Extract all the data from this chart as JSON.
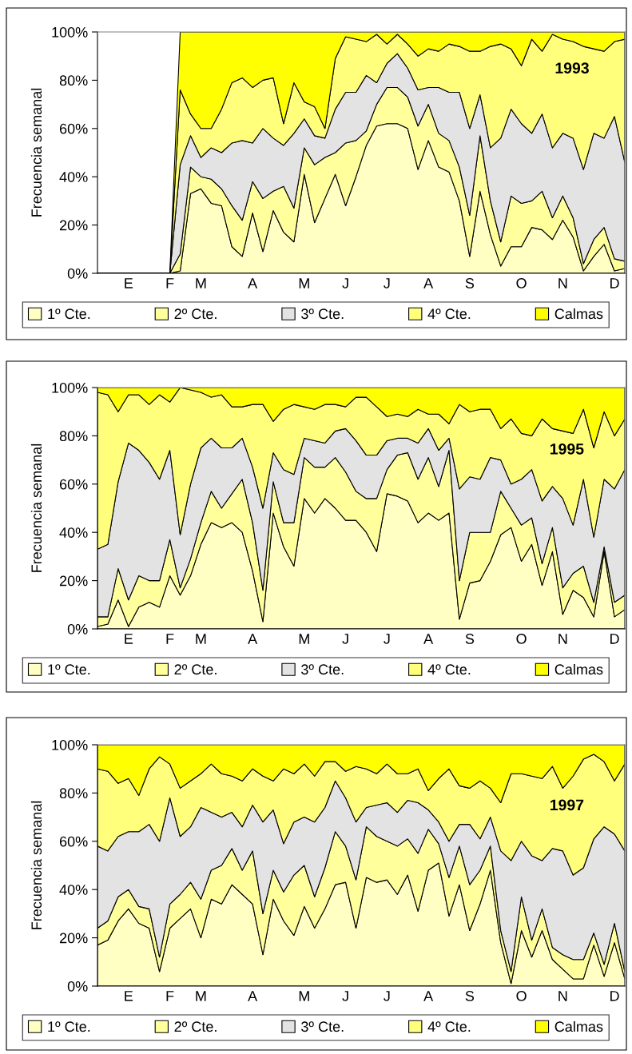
{
  "chart_data": [
    {
      "type": "area",
      "stacked": true,
      "ylabel": "Frecuencia semanal",
      "annotations": [
        "1993"
      ],
      "legend": "bottom",
      "categories": [
        null,
        null,
        null,
        "E",
        null,
        null,
        null,
        "F",
        null,
        null,
        "M",
        null,
        null,
        null,
        null,
        "A",
        null,
        null,
        null,
        null,
        "M",
        null,
        null,
        null,
        "J",
        null,
        null,
        null,
        "J",
        null,
        null,
        null,
        "A",
        null,
        null,
        null,
        "S",
        null,
        null,
        null,
        null,
        "O",
        null,
        null,
        null,
        "N",
        null,
        null,
        null,
        null,
        "D",
        null
      ],
      "ylim": [
        0,
        100
      ],
      "yticks": [
        {
          "value": 0,
          "label": "0%"
        },
        {
          "value": 20,
          "label": "20%"
        },
        {
          "value": 40,
          "label": "40%"
        },
        {
          "value": 60,
          "label": "60%"
        },
        {
          "value": 80,
          "label": "80%"
        },
        {
          "value": 100,
          "label": "100%"
        }
      ],
      "series": [
        {
          "name": "1º Cte.",
          "color": "#ffffc4",
          "values": [
            0,
            0,
            0,
            0,
            0,
            0,
            0,
            0,
            1,
            33,
            35,
            29,
            28,
            11,
            7,
            25,
            9,
            26,
            17,
            13,
            41,
            21,
            31,
            41,
            28,
            40,
            53,
            61,
            62,
            62,
            60,
            43,
            55,
            44,
            42,
            30,
            7,
            34,
            16,
            3,
            11,
            11,
            19,
            18,
            14,
            22,
            15,
            1,
            7,
            12,
            1,
            2
          ]
        },
        {
          "name": "2º Cte.",
          "color": "#ffff9c",
          "values": [
            0,
            0,
            0,
            0,
            0,
            0,
            0,
            0,
            7,
            11,
            5,
            10,
            7,
            17,
            15,
            13,
            22,
            8,
            19,
            14,
            11,
            24,
            17,
            9,
            26,
            15,
            6,
            9,
            15,
            15,
            13,
            18,
            15,
            14,
            13,
            14,
            17,
            23,
            14,
            10,
            21,
            18,
            11,
            16,
            9,
            10,
            8,
            3,
            7,
            7,
            5,
            3
          ]
        },
        {
          "name": "3º Cte.",
          "color": "#e3e3e3",
          "values": [
            0,
            0,
            0,
            0,
            0,
            0,
            0,
            0,
            37,
            13,
            8,
            13,
            15,
            26,
            33,
            16,
            29,
            22,
            17,
            31,
            12,
            12,
            8,
            18,
            21,
            20,
            23,
            9,
            10,
            14,
            12,
            15,
            7,
            19,
            20,
            31,
            36,
            17,
            22,
            43,
            36,
            33,
            28,
            32,
            29,
            26,
            33,
            39,
            44,
            37,
            59,
            41
          ]
        },
        {
          "name": "4º Cte.",
          "color": "#ffff7c",
          "values": [
            0,
            0,
            0,
            0,
            0,
            0,
            0,
            0,
            31,
            9,
            12,
            8,
            18,
            25,
            26,
            23,
            20,
            25,
            9,
            21,
            7,
            12,
            4,
            21,
            23,
            22,
            14,
            20,
            8,
            8,
            10,
            14,
            16,
            15,
            20,
            19,
            32,
            18,
            42,
            39,
            25,
            24,
            39,
            26,
            47,
            39,
            40,
            51,
            35,
            36,
            31,
            51
          ]
        },
        {
          "name": "Calmas",
          "color": "#ffff00",
          "values": [
            0,
            0,
            0,
            0,
            0,
            0,
            0,
            0,
            24,
            34,
            40,
            40,
            32,
            21,
            19,
            23,
            20,
            19,
            38,
            21,
            29,
            31,
            40,
            11,
            2,
            3,
            4,
            1,
            5,
            1,
            5,
            10,
            7,
            8,
            5,
            6,
            8,
            8,
            6,
            5,
            7,
            14,
            3,
            8,
            1,
            3,
            4,
            6,
            7,
            8,
            4,
            3
          ]
        }
      ]
    },
    {
      "type": "area",
      "stacked": true,
      "ylabel": "Frecuencia semanal",
      "annotations": [
        "1995"
      ],
      "legend": "bottom",
      "categories": [
        null,
        null,
        null,
        "E",
        null,
        null,
        null,
        "F",
        null,
        null,
        "M",
        null,
        null,
        null,
        null,
        "A",
        null,
        null,
        null,
        null,
        "M",
        null,
        null,
        null,
        "J",
        null,
        null,
        null,
        "J",
        null,
        null,
        null,
        "A",
        null,
        null,
        null,
        "S",
        null,
        null,
        null,
        null,
        "O",
        null,
        null,
        null,
        "N",
        null,
        null,
        null,
        null,
        "D",
        null
      ],
      "ylim": [
        0,
        100
      ],
      "yticks": [
        {
          "value": 0,
          "label": "0%"
        },
        {
          "value": 20,
          "label": "20%"
        },
        {
          "value": 40,
          "label": "40%"
        },
        {
          "value": 60,
          "label": "60%"
        },
        {
          "value": 80,
          "label": "80%"
        },
        {
          "value": 100,
          "label": "100%"
        }
      ],
      "series": [
        {
          "name": "1º Cte.",
          "color": "#ffffc4",
          "values": [
            1,
            2,
            12,
            1,
            9,
            11,
            9,
            22,
            14,
            22,
            35,
            44,
            42,
            44,
            40,
            24,
            3,
            48,
            34,
            26,
            54,
            48,
            54,
            50,
            45,
            45,
            40,
            32,
            56,
            55,
            53,
            44,
            48,
            45,
            48,
            4,
            19,
            20,
            28,
            39,
            42,
            28,
            35,
            18,
            32,
            6,
            16,
            13,
            5,
            32,
            5,
            8
          ]
        },
        {
          "name": "2º Cte.",
          "color": "#ffff9c",
          "values": [
            4,
            3,
            13,
            11,
            13,
            9,
            11,
            15,
            3,
            7,
            9,
            13,
            8,
            12,
            22,
            20,
            13,
            13,
            10,
            18,
            17,
            19,
            13,
            21,
            20,
            12,
            14,
            22,
            10,
            17,
            20,
            18,
            23,
            14,
            26,
            16,
            21,
            20,
            12,
            18,
            8,
            15,
            11,
            9,
            10,
            11,
            7,
            13,
            6,
            2,
            6,
            6
          ]
        },
        {
          "name": "3º Cte.",
          "color": "#e3e3e3",
          "values": [
            28,
            30,
            36,
            65,
            52,
            49,
            42,
            37,
            22,
            31,
            31,
            22,
            25,
            19,
            17,
            23,
            34,
            12,
            22,
            20,
            8,
            11,
            10,
            11,
            18,
            21,
            18,
            18,
            12,
            7,
            6,
            15,
            12,
            15,
            5,
            38,
            23,
            22,
            31,
            13,
            10,
            19,
            20,
            26,
            17,
            37,
            20,
            36,
            27,
            28,
            47,
            52
          ]
        },
        {
          "name": "4º Cte.",
          "color": "#ffff7c",
          "values": [
            65,
            62,
            29,
            20,
            23,
            24,
            35,
            20,
            61,
            39,
            23,
            17,
            22,
            17,
            13,
            26,
            43,
            13,
            25,
            29,
            13,
            13,
            16,
            11,
            9,
            18,
            24,
            20,
            10,
            10,
            9,
            14,
            6,
            15,
            6,
            35,
            27,
            29,
            20,
            13,
            27,
            19,
            14,
            34,
            24,
            28,
            38,
            29,
            37,
            28,
            22,
            21
          ]
        },
        {
          "name": "Calmas",
          "color": "#ffff00",
          "values": [
            2,
            3,
            10,
            3,
            3,
            7,
            3,
            6,
            0,
            1,
            2,
            4,
            3,
            8,
            8,
            7,
            7,
            14,
            9,
            7,
            8,
            9,
            7,
            7,
            8,
            4,
            4,
            8,
            12,
            11,
            12,
            9,
            11,
            11,
            15,
            7,
            10,
            9,
            9,
            17,
            13,
            19,
            20,
            13,
            17,
            18,
            19,
            9,
            25,
            10,
            20,
            13
          ]
        }
      ]
    },
    {
      "type": "area",
      "stacked": true,
      "ylabel": "Frecuencia semanal",
      "annotations": [
        "1997"
      ],
      "legend": "bottom",
      "categories": [
        null,
        null,
        null,
        "E",
        null,
        null,
        null,
        "F",
        null,
        null,
        "M",
        null,
        null,
        null,
        null,
        "A",
        null,
        null,
        null,
        null,
        "M",
        null,
        null,
        null,
        "J",
        null,
        null,
        null,
        "J",
        null,
        null,
        null,
        "A",
        null,
        null,
        null,
        "S",
        null,
        null,
        null,
        null,
        "O",
        null,
        null,
        null,
        "N",
        null,
        null,
        null,
        null,
        "D",
        null
      ],
      "ylim": [
        0,
        100
      ],
      "yticks": [
        {
          "value": 0,
          "label": "0%"
        },
        {
          "value": 20,
          "label": "20%"
        },
        {
          "value": 40,
          "label": "40%"
        },
        {
          "value": 60,
          "label": "60%"
        },
        {
          "value": 80,
          "label": "80%"
        },
        {
          "value": 100,
          "label": "100%"
        }
      ],
      "series": [
        {
          "name": "1º Cte.",
          "color": "#ffffc4",
          "values": [
            17,
            19,
            27,
            32,
            26,
            24,
            6,
            24,
            28,
            32,
            20,
            36,
            34,
            42,
            38,
            34,
            13,
            36,
            27,
            21,
            33,
            24,
            32,
            42,
            43,
            24,
            45,
            43,
            44,
            38,
            46,
            31,
            48,
            51,
            29,
            42,
            23,
            34,
            48,
            18,
            1,
            23,
            12,
            23,
            11,
            7,
            3,
            3,
            17,
            4,
            18,
            3
          ]
        },
        {
          "name": "2º Cte.",
          "color": "#ffff9c",
          "values": [
            7,
            8,
            10,
            8,
            7,
            8,
            6,
            10,
            10,
            11,
            16,
            12,
            16,
            15,
            10,
            22,
            17,
            12,
            12,
            25,
            17,
            13,
            17,
            22,
            15,
            20,
            21,
            19,
            16,
            20,
            15,
            24,
            17,
            8,
            16,
            16,
            19,
            14,
            10,
            5,
            5,
            14,
            7,
            9,
            5,
            6,
            8,
            8,
            5,
            5,
            8,
            3
          ]
        },
        {
          "name": "3º Cte.",
          "color": "#e3e3e3",
          "values": [
            34,
            29,
            25,
            24,
            31,
            35,
            48,
            44,
            24,
            23,
            38,
            24,
            20,
            15,
            18,
            19,
            38,
            25,
            20,
            22,
            20,
            31,
            25,
            21,
            20,
            24,
            8,
            13,
            16,
            14,
            16,
            21,
            8,
            9,
            15,
            9,
            25,
            13,
            12,
            33,
            46,
            23,
            35,
            20,
            41,
            43,
            35,
            38,
            39,
            57,
            37,
            50
          ]
        },
        {
          "name": "4º Cte.",
          "color": "#ffff7c",
          "values": [
            32,
            33,
            22,
            22,
            15,
            23,
            35,
            14,
            20,
            19,
            14,
            20,
            18,
            15,
            19,
            15,
            19,
            12,
            31,
            20,
            22,
            19,
            19,
            8,
            11,
            23,
            16,
            13,
            16,
            16,
            11,
            14,
            8,
            18,
            30,
            16,
            15,
            24,
            12,
            20,
            36,
            28,
            33,
            34,
            34,
            26,
            41,
            45,
            35,
            27,
            22,
            36
          ]
        },
        {
          "name": "Calmas",
          "color": "#ffff00",
          "values": [
            10,
            11,
            16,
            14,
            21,
            10,
            5,
            8,
            18,
            15,
            12,
            8,
            12,
            13,
            15,
            10,
            13,
            15,
            10,
            12,
            8,
            13,
            7,
            7,
            11,
            9,
            10,
            12,
            8,
            12,
            12,
            10,
            19,
            14,
            10,
            17,
            18,
            15,
            18,
            24,
            12,
            12,
            13,
            14,
            9,
            18,
            13,
            6,
            4,
            7,
            15,
            8
          ]
        }
      ]
    }
  ]
}
